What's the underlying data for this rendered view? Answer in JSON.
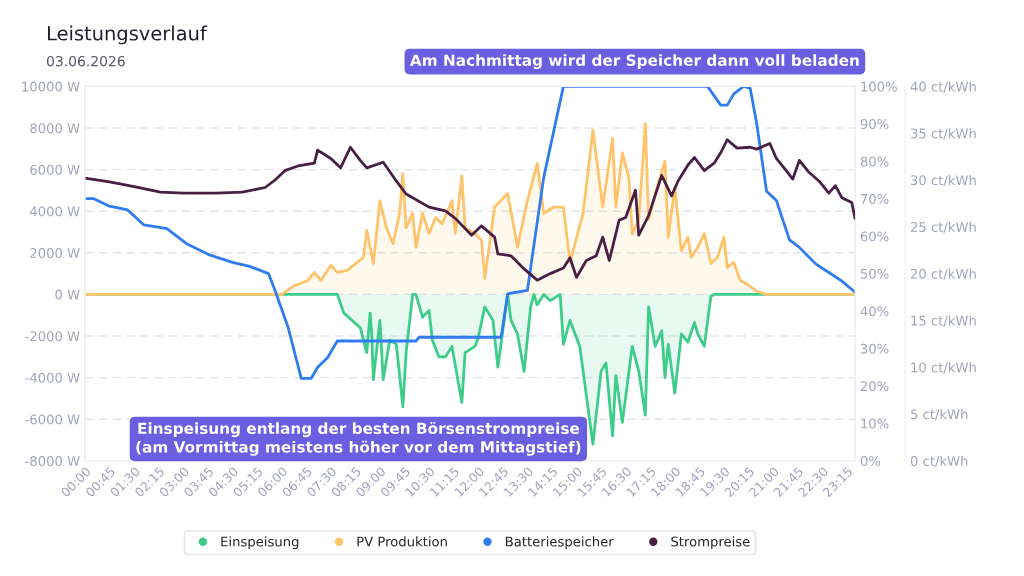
{
  "chart_data": {
    "type": "line",
    "title": "Leistungsverlauf",
    "subtitle": "03.06.2026",
    "annotations": [
      "Am Nachmittag wird der Speicher dann voll beladen",
      "Einspeisung entlang der besten Börsenstrompreise\n(am Vormittag meistens höher vor dem Mittagstief)"
    ],
    "xlim": [
      0,
      23.5
    ],
    "xticks": [
      {
        "value": 0,
        "label": "00:00"
      },
      {
        "value": 0.75,
        "label": "00:45"
      },
      {
        "value": 1.5,
        "label": "01:30"
      },
      {
        "value": 2.25,
        "label": "02:15"
      },
      {
        "value": 3,
        "label": "03:00"
      },
      {
        "value": 3.75,
        "label": "03:45"
      },
      {
        "value": 4.5,
        "label": "04:30"
      },
      {
        "value": 5.25,
        "label": "05:15"
      },
      {
        "value": 6,
        "label": "06:00"
      },
      {
        "value": 6.75,
        "label": "06:45"
      },
      {
        "value": 7.5,
        "label": "07:30"
      },
      {
        "value": 8.25,
        "label": "08:15"
      },
      {
        "value": 9,
        "label": "09:00"
      },
      {
        "value": 9.75,
        "label": "09:45"
      },
      {
        "value": 10.5,
        "label": "10:30"
      },
      {
        "value": 11.25,
        "label": "11:15"
      },
      {
        "value": 12,
        "label": "12:00"
      },
      {
        "value": 12.75,
        "label": "12:45"
      },
      {
        "value": 13.5,
        "label": "13:30"
      },
      {
        "value": 14.25,
        "label": "14:15"
      },
      {
        "value": 15,
        "label": "15:00"
      },
      {
        "value": 15.75,
        "label": "15:45"
      },
      {
        "value": 16.5,
        "label": "16:30"
      },
      {
        "value": 17.25,
        "label": "17:15"
      },
      {
        "value": 18,
        "label": "18:00"
      },
      {
        "value": 18.75,
        "label": "18:45"
      },
      {
        "value": 19.5,
        "label": "19:30"
      },
      {
        "value": 20.25,
        "label": "20:15"
      },
      {
        "value": 21,
        "label": "21:00"
      },
      {
        "value": 21.75,
        "label": "21:45"
      },
      {
        "value": 22.5,
        "label": "22:30"
      },
      {
        "value": 23.25,
        "label": "23:15"
      }
    ],
    "ylim": [
      -8000,
      10000
    ],
    "yticks": [
      {
        "value": -8000,
        "label": "-8000 W"
      },
      {
        "value": -6000,
        "label": "-6000 W"
      },
      {
        "value": -4000,
        "label": "-4000 W"
      },
      {
        "value": -2000,
        "label": "-2000 W"
      },
      {
        "value": 0,
        "label": "0 W"
      },
      {
        "value": 2000,
        "label": "2000 W"
      },
      {
        "value": 4000,
        "label": "4000 W"
      },
      {
        "value": 6000,
        "label": "6000 W"
      },
      {
        "value": 8000,
        "label": "8000 W"
      },
      {
        "value": 10000,
        "label": "10000 W"
      }
    ],
    "y2lim": [
      0,
      100
    ],
    "y2ticks": [
      {
        "value": 0,
        "label": "0%"
      },
      {
        "value": 10,
        "label": "10%"
      },
      {
        "value": 20,
        "label": "20%"
      },
      {
        "value": 30,
        "label": "30%"
      },
      {
        "value": 40,
        "label": "40%"
      },
      {
        "value": 50,
        "label": "50%"
      },
      {
        "value": 60,
        "label": "60%"
      },
      {
        "value": 70,
        "label": "70%"
      },
      {
        "value": 80,
        "label": "80%"
      },
      {
        "value": 90,
        "label": "90%"
      },
      {
        "value": 100,
        "label": "100%"
      }
    ],
    "y3lim": [
      0,
      40
    ],
    "y3ticks": [
      {
        "value": 0,
        "label": "0 ct/kWh"
      },
      {
        "value": 5,
        "label": "5 ct/kWh"
      },
      {
        "value": 10,
        "label": "10 ct/kWh"
      },
      {
        "value": 15,
        "label": "15 ct/kWh"
      },
      {
        "value": 20,
        "label": "20 ct/kWh"
      },
      {
        "value": 25,
        "label": "25 ct/kWh"
      },
      {
        "value": 30,
        "label": "30 ct/kWh"
      },
      {
        "value": 35,
        "label": "35 ct/kWh"
      },
      {
        "value": 40,
        "label": "40 ct/kWh"
      }
    ],
    "grid": "y",
    "legend": "bottom",
    "series": [
      {
        "name": "Einspeisung",
        "type": "area",
        "color": "#3dcc8a",
        "x": [
          0,
          7.7,
          7.9,
          8.4,
          8.6,
          8.7,
          8.75,
          8.8,
          9.0,
          9.1,
          9.3,
          9.5,
          9.7,
          9.8,
          10.0,
          10.1,
          10.3,
          10.5,
          10.6,
          10.8,
          11.0,
          11.2,
          11.5,
          11.6,
          11.9,
          12.0,
          12.2,
          12.45,
          12.6,
          12.9,
          13.0,
          13.2,
          13.4,
          13.6,
          13.7,
          13.8,
          14.0,
          14.2,
          14.5,
          14.6,
          14.8,
          15.1,
          15.5,
          15.75,
          15.9,
          16.1,
          16.2,
          16.4,
          16.7,
          16.9,
          17.1,
          17.2,
          17.4,
          17.6,
          17.7,
          17.8,
          18.0,
          18.2,
          18.4,
          18.6,
          18.7,
          18.9,
          19.1,
          19.2,
          23.5
        ],
        "values": [
          0,
          0,
          -900,
          -1600,
          -2800,
          -900,
          -1900,
          -4100,
          -1250,
          -4100,
          -2200,
          -2400,
          -5400,
          -2800,
          0,
          0,
          -1100,
          -770,
          -2200,
          -3000,
          -3000,
          -2500,
          -5200,
          -2800,
          -2500,
          -2100,
          -600,
          -1250,
          -3500,
          0,
          -1250,
          -1900,
          -3700,
          -600,
          0,
          -500,
          0,
          -300,
          0,
          -2400,
          -1250,
          -2500,
          -7200,
          -3700,
          -3300,
          -6800,
          -3900,
          -6150,
          -2500,
          -3700,
          -5800,
          -600,
          -2500,
          -1750,
          -4000,
          -2400,
          -4750,
          -1900,
          -2300,
          -1350,
          -1900,
          -2500,
          -100,
          0,
          0
        ]
      },
      {
        "name": "PV Produktion",
        "type": "area",
        "color": "#ffc46b",
        "x": [
          0,
          6.0,
          6.4,
          6.8,
          7.0,
          7.2,
          7.5,
          7.7,
          8.0,
          8.3,
          8.5,
          8.6,
          8.8,
          9.0,
          9.2,
          9.4,
          9.6,
          9.7,
          9.8,
          10.0,
          10.1,
          10.3,
          10.5,
          10.7,
          10.9,
          11.2,
          11.3,
          11.5,
          11.6,
          11.9,
          12.1,
          12.2,
          12.5,
          12.9,
          13.2,
          13.5,
          13.8,
          14.0,
          14.3,
          14.6,
          14.8,
          15.2,
          15.5,
          15.8,
          16.1,
          16.2,
          16.4,
          16.6,
          16.7,
          16.9,
          17.1,
          17.2,
          17.4,
          17.7,
          17.8,
          18.0,
          18.2,
          18.4,
          18.5,
          18.7,
          18.9,
          19.1,
          19.3,
          19.5,
          19.6,
          19.8,
          20.0,
          20.2,
          20.5,
          20.8,
          23.5
        ],
        "values": [
          0,
          0,
          430,
          670,
          1060,
          670,
          1400,
          1060,
          1150,
          1540,
          1780,
          3080,
          1490,
          4500,
          3200,
          2450,
          3900,
          5800,
          3200,
          3900,
          2260,
          3900,
          2930,
          3700,
          3400,
          4500,
          2930,
          5700,
          3200,
          2930,
          2600,
          770,
          4200,
          4850,
          2260,
          4500,
          6300,
          3900,
          4200,
          4200,
          1540,
          3900,
          7900,
          4200,
          7500,
          4200,
          6800,
          5600,
          2900,
          3600,
          8200,
          3600,
          4850,
          6400,
          2740,
          5150,
          2100,
          2750,
          1780,
          2260,
          2930,
          1490,
          1780,
          2750,
          1300,
          1540,
          670,
          500,
          150,
          0,
          0
        ]
      },
      {
        "name": "Batteriespeicher",
        "axis": "y2",
        "color": "#2f7cf0",
        "x": [
          0,
          0.27,
          0.75,
          1.3,
          1.8,
          2.5,
          3.1,
          3.8,
          4.5,
          5,
          5.6,
          5.8,
          6.2,
          6.6,
          6.9,
          7.1,
          7.4,
          7.7,
          10.1,
          10.2,
          12.7,
          12.9,
          13.5,
          14,
          14.6,
          19,
          19.4,
          19.6,
          19.8,
          20.1,
          20.3,
          20.5,
          20.8,
          21.1,
          21.5,
          21.8,
          22.3,
          22.7,
          23.1,
          23.5
        ],
        "values": [
          70,
          70,
          68,
          67,
          63,
          62,
          58,
          55,
          53,
          52,
          50,
          45.5,
          35.6,
          22,
          22,
          25,
          27.5,
          32,
          32,
          33,
          33,
          44.6,
          45.5,
          75.7,
          100,
          100,
          95,
          95,
          98,
          100,
          99.5,
          90,
          72,
          69.5,
          59,
          57,
          52.6,
          50.3,
          48,
          45
        ]
      },
      {
        "name": "Strompreise",
        "axis": "y3",
        "color": "#4a1f46",
        "x": [
          0,
          0.75,
          1.5,
          2.3,
          3,
          4,
          4.8,
          5.5,
          5.8,
          6.1,
          6.5,
          7,
          7.1,
          7.5,
          7.8,
          8.1,
          8.4,
          8.6,
          9.1,
          9.5,
          9.8,
          10,
          10.5,
          11,
          11.3,
          11.8,
          12.1,
          12.5,
          12.6,
          13,
          13.4,
          13.8,
          14.2,
          14.6,
          14.8,
          15,
          15.3,
          15.6,
          15.8,
          16,
          16.3,
          16.5,
          16.8,
          16.9,
          17.2,
          17.6,
          17.9,
          18.1,
          18.4,
          18.6,
          18.9,
          19.2,
          19.4,
          19.6,
          19.9,
          20.3,
          20.5,
          20.9,
          21.1,
          21.4,
          21.6,
          21.8,
          22.1,
          22.4,
          22.7,
          22.9,
          23.1,
          23.4,
          23.5
        ],
        "values": [
          30.2,
          29.8,
          29.3,
          28.7,
          28.6,
          28.6,
          28.7,
          29.2,
          30,
          31,
          31.5,
          31.8,
          33.2,
          32.3,
          31.3,
          33.5,
          32.1,
          31.3,
          31.9,
          29.9,
          28.5,
          28.1,
          27.1,
          26.7,
          25.9,
          24.1,
          25.1,
          23.9,
          22.1,
          21.9,
          20.5,
          19.3,
          20,
          20.6,
          21.7,
          19.6,
          21.4,
          21.9,
          23.9,
          21.4,
          25.7,
          26,
          28.9,
          24.1,
          26.2,
          30.5,
          28.3,
          29.9,
          31.6,
          32.4,
          31,
          31.8,
          32.9,
          34.3,
          33.4,
          33.5,
          33.3,
          33.9,
          32.3,
          31,
          30.1,
          32.1,
          30.8,
          29.9,
          28.6,
          29.4,
          28.1,
          27.6,
          25.9
        ]
      }
    ]
  }
}
